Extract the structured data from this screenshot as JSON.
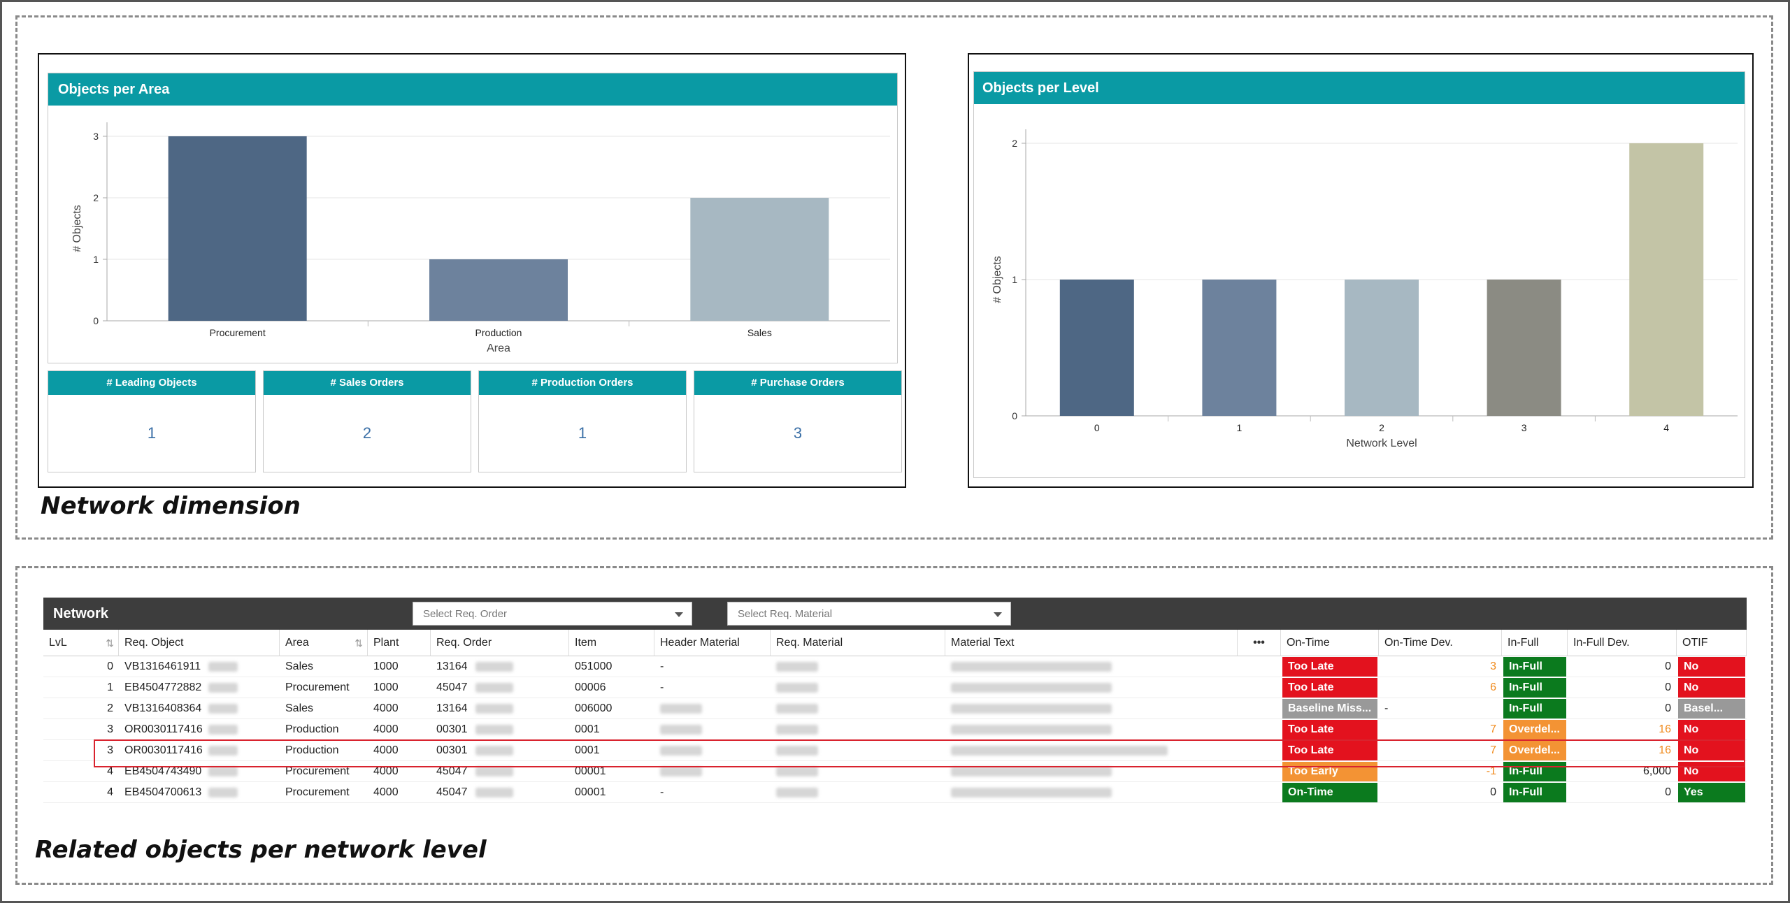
{
  "captions": {
    "top": "Network dimension",
    "bottom": "Related objects per network level"
  },
  "colors": {
    "teal": "#0a9aa4",
    "dark_header": "#3d3d3d",
    "red": "#e3121e",
    "green": "#0b7a1e",
    "orange": "#f39334",
    "gray": "#999999"
  },
  "charts": [
    {
      "title": "Objects per Area",
      "chart_data": {
        "type": "bar",
        "categories": [
          "Procurement",
          "Production",
          "Sales"
        ],
        "values": [
          3,
          1,
          2
        ],
        "colors": [
          "#4e6784",
          "#6d829d",
          "#a7b8c2"
        ],
        "xlabel": "Area",
        "ylabel": "# Objects",
        "ylim": [
          0,
          3
        ],
        "yticks": [
          "0",
          "1",
          "2",
          "3"
        ],
        "grid": true
      }
    },
    {
      "title": "Objects per Level",
      "chart_data": {
        "type": "bar",
        "categories": [
          "0",
          "1",
          "2",
          "3",
          "4"
        ],
        "values": [
          1,
          1,
          1,
          1,
          2
        ],
        "colors": [
          "#4e6784",
          "#6d829d",
          "#a7b8c2",
          "#8b8b83",
          "#c3c4a6"
        ],
        "xlabel": "Network Level",
        "ylabel": "# Objects",
        "ylim": [
          0,
          2
        ],
        "yticks": [
          "0",
          "1",
          "2"
        ],
        "grid": true
      }
    }
  ],
  "kpis": [
    {
      "label": "# Leading Objects",
      "value": "1"
    },
    {
      "label": "# Sales Orders",
      "value": "2"
    },
    {
      "label": "# Production Orders",
      "value": "1"
    },
    {
      "label": "# Purchase Orders",
      "value": "3"
    }
  ],
  "table": {
    "title": "Network",
    "filters": [
      {
        "placeholder": "Select Req. Order"
      },
      {
        "placeholder": "Select Req. Material"
      }
    ],
    "more": "•••",
    "columns": [
      "LvL",
      "Req. Object",
      "Area",
      "Plant",
      "Req. Order",
      "Item",
      "Header Material",
      "Req. Material",
      "Material Text",
      "On-Time",
      "On-Time Dev.",
      "In-Full",
      "In-Full Dev.",
      "OTIF"
    ],
    "rows": [
      {
        "lvl": "0",
        "obj": "VB1316461911",
        "area": "Sales",
        "plant": "1000",
        "order": "13164",
        "item": "051000",
        "hmat": "-",
        "ontime": "Too Late",
        "ontime_color": "red",
        "otdev": "3",
        "infull": "In-Full",
        "infull_color": "green",
        "ifdev": "0",
        "otif": "No",
        "otif_color": "red"
      },
      {
        "lvl": "1",
        "obj": "EB4504772882",
        "area": "Procurement",
        "plant": "1000",
        "order": "45047",
        "item": "00006",
        "hmat": "-",
        "ontime": "Too Late",
        "ontime_color": "red",
        "otdev": "6",
        "infull": "In-Full",
        "infull_color": "green",
        "ifdev": "0",
        "otif": "No",
        "otif_color": "red"
      },
      {
        "lvl": "2",
        "obj": "VB1316408364",
        "area": "Sales",
        "plant": "4000",
        "order": "13164",
        "item": "006000",
        "hmat": "",
        "ontime": "Baseline Miss...",
        "ontime_color": "gray",
        "otdev": "-",
        "infull": "In-Full",
        "infull_color": "green",
        "ifdev": "0",
        "otif": "Basel...",
        "otif_color": "gray"
      },
      {
        "lvl": "3",
        "obj": "OR0030117416",
        "area": "Production",
        "plant": "4000",
        "order": "00301",
        "item": "0001",
        "hmat": "",
        "ontime": "Too Late",
        "ontime_color": "red",
        "otdev": "7",
        "infull": "Overdel...",
        "infull_color": "orange",
        "ifdev": "16",
        "otif": "No",
        "otif_color": "red"
      },
      {
        "lvl": "3",
        "obj": "OR0030117416",
        "area": "Production",
        "plant": "4000",
        "order": "00301",
        "item": "0001",
        "hmat": "",
        "ontime": "Too Late",
        "ontime_color": "red",
        "otdev": "7",
        "infull": "Overdel...",
        "infull_color": "orange",
        "ifdev": "16",
        "otif": "No",
        "otif_color": "red"
      },
      {
        "lvl": "4",
        "obj": "EB4504743490",
        "area": "Procurement",
        "plant": "4000",
        "order": "45047",
        "item": "00001",
        "hmat": "",
        "ontime": "Too Early",
        "ontime_color": "orange",
        "otdev": "-1",
        "infull": "In-Full",
        "infull_color": "green",
        "ifdev": "6,000",
        "otif": "No",
        "otif_color": "red"
      },
      {
        "lvl": "4",
        "obj": "EB4504700613",
        "area": "Procurement",
        "plant": "4000",
        "order": "45047",
        "item": "00001",
        "hmat": "-",
        "ontime": "On-Time",
        "ontime_color": "green",
        "otdev": "0",
        "infull": "In-Full",
        "infull_color": "green",
        "ifdev": "0",
        "otif": "Yes",
        "otif_color": "green"
      }
    ]
  }
}
